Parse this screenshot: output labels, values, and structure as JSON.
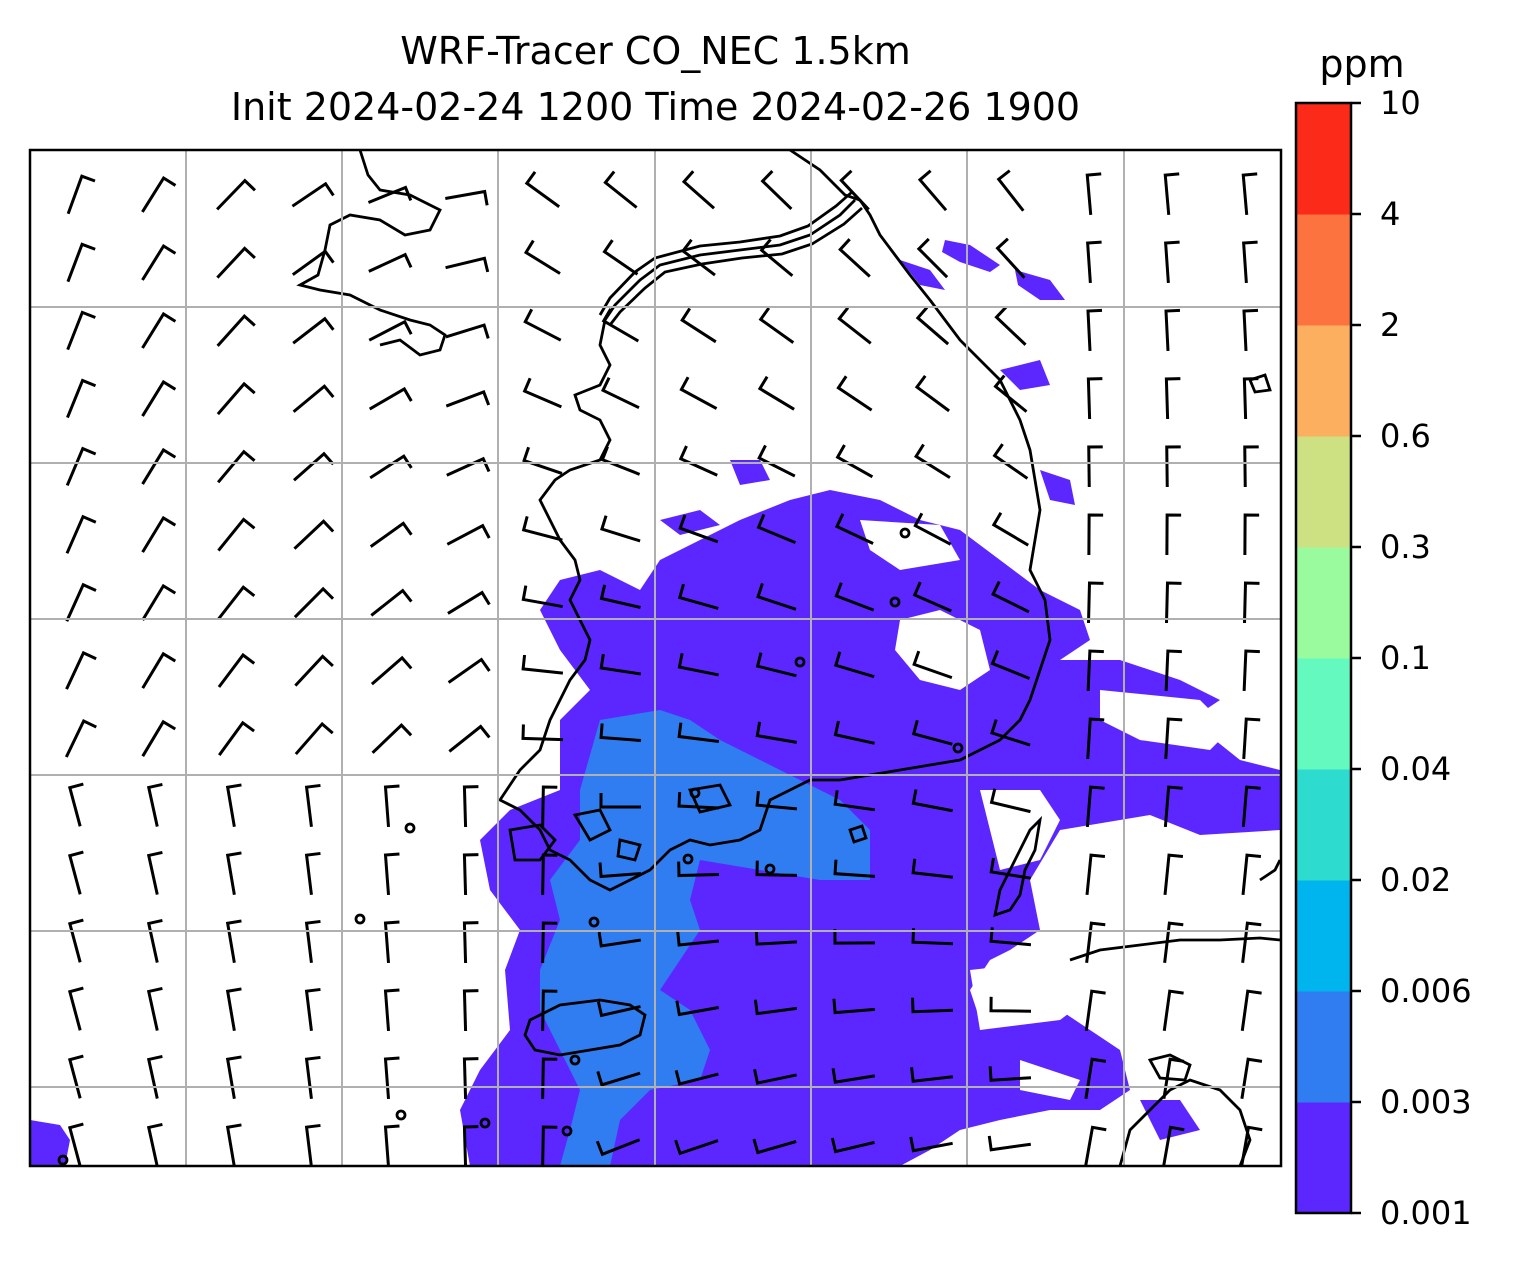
{
  "title": {
    "line1": "WRF-Tracer CO_NEC 1.5km",
    "line2": "Init 2024-02-24 1200 Time 2024-02-26 1900"
  },
  "colorbar": {
    "unit": "ppm",
    "levels": [
      "0.001",
      "0.003",
      "0.006",
      "0.02",
      "0.04",
      "0.1",
      "0.3",
      "0.6",
      "2",
      "4",
      "10"
    ],
    "colors": [
      "#5c27ff",
      "#2f7df0",
      "#00b4ee",
      "#2ddccf",
      "#64f9bf",
      "#9afb9e",
      "#cde182",
      "#fcb05f",
      "#fd7340",
      "#fb2a19"
    ]
  },
  "map": {
    "layers": [
      "tracer-concentration-fill",
      "coastlines",
      "wind-barbs",
      "lat-lon-gridlines"
    ],
    "gridline_color": "#b0b0b0"
  }
}
